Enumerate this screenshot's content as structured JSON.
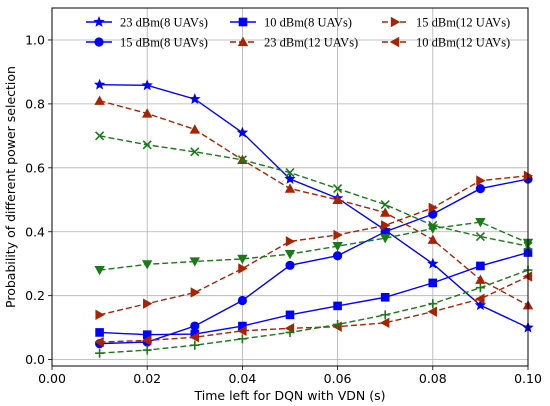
{
  "chart_data": {
    "type": "line",
    "xlabel": "Time left for DQN with VDN (s)",
    "ylabel": "Probability of different power selection",
    "xlim": [
      0.0,
      0.1
    ],
    "ylim": [
      -0.02,
      1.1
    ],
    "x_ticks": [
      "0.00",
      "0.02",
      "0.04",
      "0.06",
      "0.08",
      "0.10"
    ],
    "y_ticks": [
      "0.0",
      "0.2",
      "0.4",
      "0.6",
      "0.8",
      "1.0"
    ],
    "grid": true,
    "legend_position": "top",
    "x": [
      0.01,
      0.02,
      0.03,
      0.04,
      0.05,
      0.06,
      0.07,
      0.08,
      0.09,
      0.1
    ],
    "series": [
      {
        "name": "23 dBm(8 UAVs)",
        "color": "#0000ff",
        "linestyle": "solid",
        "marker": "star",
        "values": [
          0.86,
          0.858,
          0.815,
          0.71,
          0.565,
          0.505,
          0.405,
          0.3,
          0.17,
          0.1
        ]
      },
      {
        "name": "15 dBm(8 UAVs)",
        "color": "#0000ff",
        "linestyle": "solid",
        "marker": "circle",
        "values": [
          0.05,
          0.055,
          0.105,
          0.185,
          0.295,
          0.325,
          0.4,
          0.455,
          0.535,
          0.565
        ]
      },
      {
        "name": "10 dBm(8 UAVs)",
        "color": "#0000ff",
        "linestyle": "solid",
        "marker": "square",
        "values": [
          0.085,
          0.078,
          0.08,
          0.105,
          0.14,
          0.168,
          0.195,
          0.24,
          0.293,
          0.335
        ]
      },
      {
        "name": "23 dBm(12 UAVs)",
        "color": "#aa2200",
        "linestyle": "dashed",
        "marker": "triangle-up",
        "values": [
          0.81,
          0.77,
          0.72,
          0.625,
          0.535,
          0.5,
          0.46,
          0.375,
          0.25,
          0.17
        ]
      },
      {
        "name": "15 dBm(12 UAVs)",
        "color": "#aa2200",
        "linestyle": "dashed",
        "marker": "triangle-right",
        "values": [
          0.14,
          0.175,
          0.21,
          0.285,
          0.37,
          0.39,
          0.42,
          0.475,
          0.56,
          0.575
        ]
      },
      {
        "name": "10 dBm(12 UAVs)",
        "color": "#aa2200",
        "linestyle": "dashed",
        "marker": "triangle-left",
        "values": [
          0.055,
          0.06,
          0.07,
          0.09,
          0.098,
          0.103,
          0.115,
          0.15,
          0.19,
          0.26
        ]
      },
      {
        "name": "",
        "color": "#1a7a1a",
        "linestyle": "dashed",
        "marker": "x",
        "values": [
          0.7,
          0.672,
          0.65,
          0.625,
          0.585,
          0.535,
          0.485,
          0.42,
          0.385,
          0.355
        ]
      },
      {
        "name": "",
        "color": "#1a7a1a",
        "linestyle": "dashed",
        "marker": "triangle-down",
        "values": [
          0.28,
          0.298,
          0.307,
          0.315,
          0.33,
          0.355,
          0.38,
          0.41,
          0.43,
          0.365
        ]
      },
      {
        "name": "",
        "color": "#1a7a1a",
        "linestyle": "dashed",
        "marker": "plus",
        "values": [
          0.02,
          0.03,
          0.045,
          0.065,
          0.085,
          0.11,
          0.14,
          0.175,
          0.225,
          0.28
        ]
      }
    ]
  }
}
